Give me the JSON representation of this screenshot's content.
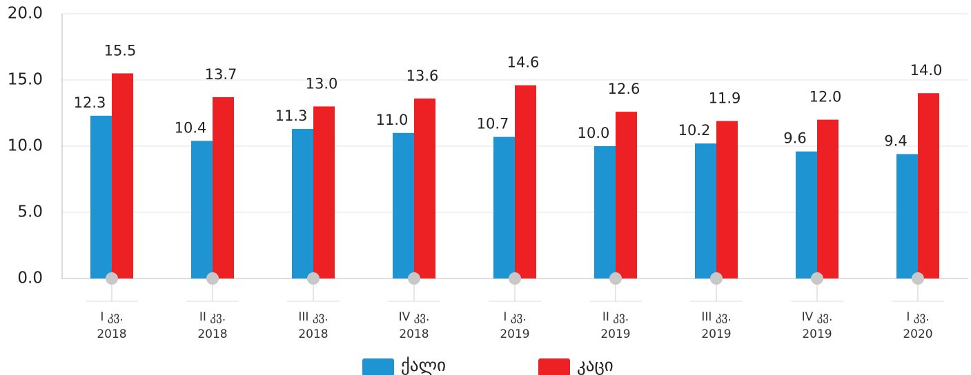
{
  "chart_data": {
    "type": "bar",
    "categories": [
      "I კვ.\n2018",
      "II კვ.\n2018",
      "III კვ.\n2018",
      "IV კვ.\n2018",
      "I კვ.\n2019",
      "II კვ.\n2019",
      "III კვ.\n2019",
      "IV კვ.\n2019",
      "I კვ.\n2020"
    ],
    "series": [
      {
        "name": "ქალი",
        "color": "#1f94d2",
        "values": [
          12.3,
          10.4,
          11.3,
          11.0,
          10.7,
          10.0,
          10.2,
          9.6,
          9.4
        ],
        "value_labels": [
          "12.3",
          "10.4",
          "11.3",
          "11.0",
          "10.7",
          "10.0",
          "10.2",
          "9.6",
          "9.4"
        ]
      },
      {
        "name": "კაცი",
        "color": "#ed2024",
        "values": [
          15.5,
          13.7,
          13.0,
          13.6,
          14.6,
          12.6,
          11.9,
          12.0,
          14.0
        ],
        "value_labels": [
          "15.5",
          "13.7",
          "13.0",
          "13.6",
          "14.6",
          "12.6",
          "11.9",
          "12.0",
          "14.0"
        ]
      }
    ],
    "ylim": [
      0,
      20
    ],
    "yticks": [
      {
        "value": 0,
        "label": "0.0"
      },
      {
        "value": 5,
        "label": "5.0"
      },
      {
        "value": 10,
        "label": "10.0"
      },
      {
        "value": 15,
        "label": "15.0"
      },
      {
        "value": 20,
        "label": "20.0"
      }
    ],
    "grid": true,
    "legend": "bottom"
  }
}
